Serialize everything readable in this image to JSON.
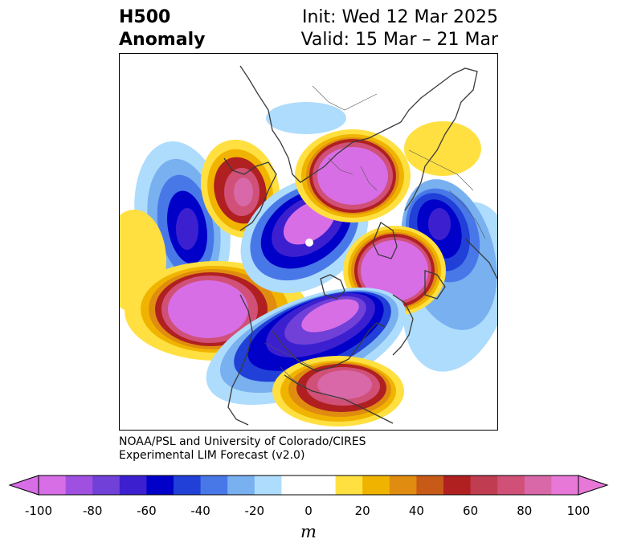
{
  "title": {
    "left_line1": "H500",
    "left_line2": "Anomaly",
    "right_line1": "Init: Wed 12 Mar 2025",
    "right_line2": "Valid: 15 Mar – 21 Mar"
  },
  "credit": {
    "line1": "NOAA/PSL and University of Colorado/CIRES",
    "line2": "Experimental LIM Forecast (v2.0)"
  },
  "colorbar": {
    "unit": "m",
    "ticks": [
      "-100",
      "-80",
      "-60",
      "-40",
      "-20",
      "0",
      "20",
      "40",
      "60",
      "80",
      "100"
    ],
    "levels": [
      -100,
      -90,
      -80,
      -70,
      -60,
      -50,
      -40,
      -30,
      -20,
      -10,
      10,
      20,
      30,
      40,
      50,
      60,
      70,
      80,
      90,
      100
    ],
    "colors": [
      "#d86ee6",
      "#a050e0",
      "#7040d8",
      "#3c20d0",
      "#0000c8",
      "#2040d8",
      "#4878e8",
      "#78b0f0",
      "#aedcfc",
      "#ffffff",
      "#ffe040",
      "#f0b400",
      "#e08c10",
      "#c85a18",
      "#b02020",
      "#c03c50",
      "#d05078",
      "#d868a8",
      "#e878d8"
    ],
    "under_color": "#d86ee6",
    "over_color": "#e878d8"
  },
  "map": {
    "projection": "north polar stereographic",
    "features": [
      "h500-anomaly-contours",
      "coastlines",
      "country-borders",
      "state-borders"
    ]
  }
}
